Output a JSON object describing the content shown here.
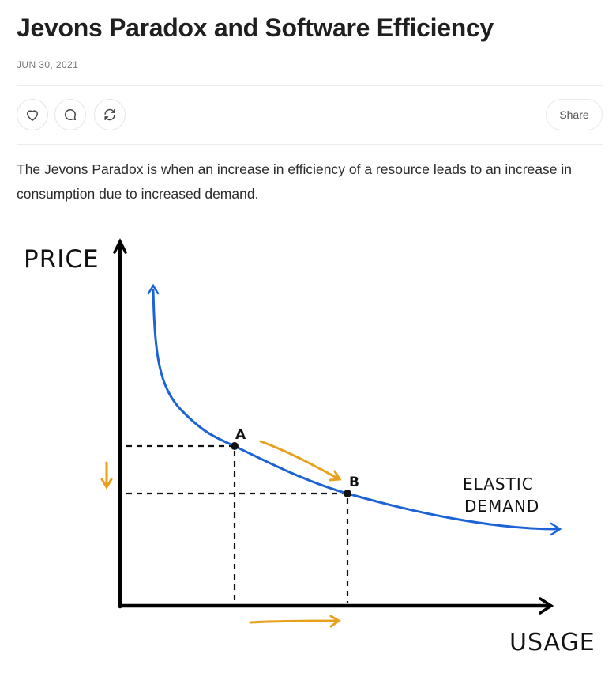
{
  "article": {
    "title": "Jevons Paradox and Software Efficiency",
    "date": "JUN 30, 2021",
    "body": "The Jevons Paradox is when an increase in efficiency of a resource leads to an increase in consumption due to increased demand."
  },
  "actions": {
    "like_icon": "heart-icon",
    "comment_icon": "comment-icon",
    "restack_icon": "restack-icon",
    "share_label": "Share"
  },
  "figure": {
    "y_axis_label": "PRICE",
    "x_axis_label": "USAGE",
    "point_a_label": "A",
    "point_b_label": "B",
    "curve_label_line1": "ELASTIC",
    "curve_label_line2": "DEMAND",
    "colors": {
      "curve": "#1c63d5",
      "arrows": "#e8a11c",
      "axes": "#000000"
    }
  }
}
